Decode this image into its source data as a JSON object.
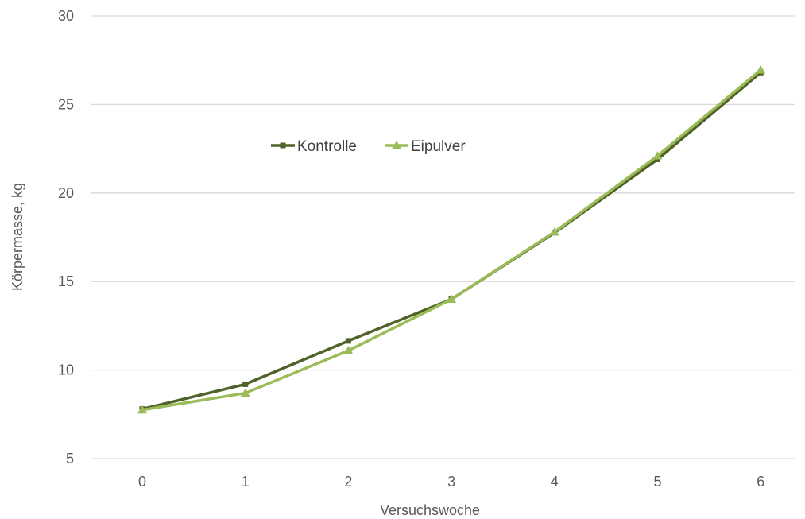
{
  "chart_data": {
    "type": "line",
    "title": "",
    "xlabel": "Versuchswoche",
    "ylabel": "Körpermasse, kg",
    "x": [
      0,
      1,
      2,
      3,
      4,
      5,
      6
    ],
    "xlim": [
      0,
      6
    ],
    "ylim": [
      5,
      30
    ],
    "yticks": [
      5,
      10,
      15,
      20,
      25,
      30
    ],
    "grid": "horizontal",
    "legend_position": "inside-top-center",
    "series": [
      {
        "name": "Kontrolle",
        "color": "#4f6228",
        "marker": "square",
        "values": [
          7.8,
          9.2,
          11.65,
          14.0,
          17.75,
          21.9,
          26.8
        ]
      },
      {
        "name": "Eipulver",
        "color": "#9bbb59",
        "marker": "triangle",
        "values": [
          7.75,
          8.7,
          11.1,
          14.0,
          17.8,
          22.1,
          26.95
        ]
      }
    ]
  }
}
